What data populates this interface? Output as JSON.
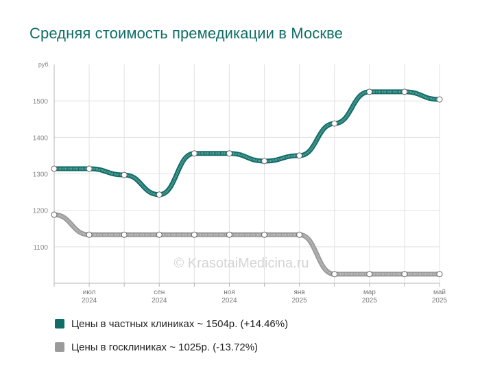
{
  "title": "Средняя стоимость премедикации в Москве",
  "watermark": "© KrasotaiMedicina.ru",
  "chart_data": {
    "type": "line",
    "ylabel": "руб.",
    "ylim": [
      1000,
      1600
    ],
    "yticks": [
      {
        "v": 1100,
        "label": "1100"
      },
      {
        "v": 1200,
        "label": "1200"
      },
      {
        "v": 1300,
        "label": "1300"
      },
      {
        "v": 1400,
        "label": "1400"
      },
      {
        "v": 1500,
        "label": "1500"
      }
    ],
    "x": [
      "2024-06",
      "2024-07",
      "2024-08",
      "2024-09",
      "2024-10",
      "2024-11",
      "2024-12",
      "2025-01",
      "2025-02",
      "2025-03",
      "2025-04",
      "2025-05"
    ],
    "xticks": [
      {
        "index": 1,
        "month": "июл",
        "year": "2024"
      },
      {
        "index": 3,
        "month": "сен",
        "year": "2024"
      },
      {
        "index": 5,
        "month": "ноя",
        "year": "2024"
      },
      {
        "index": 7,
        "month": "янв",
        "year": "2025"
      },
      {
        "index": 9,
        "month": "мар",
        "year": "2025"
      },
      {
        "index": 11,
        "month": "май",
        "year": "2025"
      }
    ],
    "grid": true,
    "series": [
      {
        "name": "Цены в частных клиниках ~ 1504р. (+14.46%)",
        "color": "#0e6d67",
        "values": [
          1314,
          1314,
          1297,
          1243,
          1356,
          1356,
          1335,
          1350,
          1438,
          1525,
          1525,
          1504
        ]
      },
      {
        "name": "Цены в госклиниках ~ 1025р. (-13.72%)",
        "color": "#9a9a9a",
        "values": [
          1188,
          1133,
          1133,
          1133,
          1133,
          1133,
          1133,
          1133,
          1025,
          1025,
          1025,
          1025
        ]
      }
    ]
  }
}
